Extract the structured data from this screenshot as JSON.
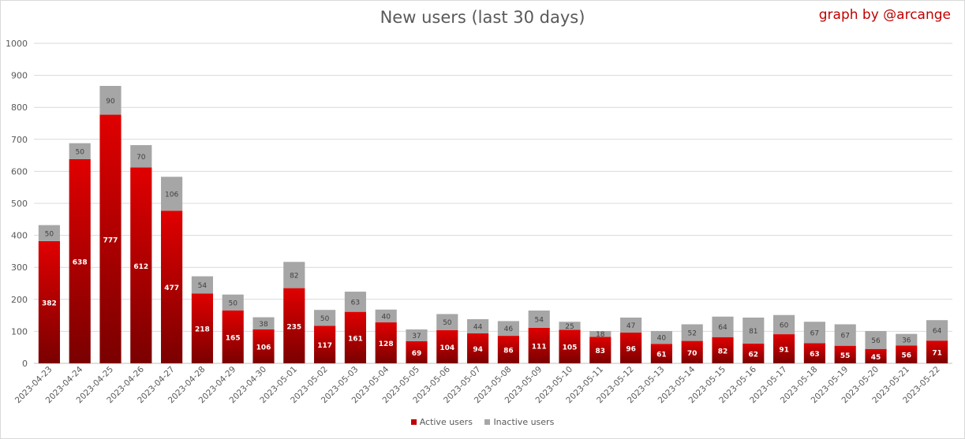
{
  "chart_data": {
    "type": "bar",
    "stacked": true,
    "title": "New users (last 30 days)",
    "credit": "graph by @arcange",
    "ylim": [
      0,
      1000
    ],
    "yticks": [
      0,
      100,
      200,
      300,
      400,
      500,
      600,
      700,
      800,
      900,
      1000
    ],
    "grid": true,
    "legend_position": "bottom",
    "categories": [
      "2023-04-23",
      "2023-04-24",
      "2023-04-25",
      "2023-04-26",
      "2023-04-27",
      "2023-04-28",
      "2023-04-29",
      "2023-04-30",
      "2023-05-01",
      "2023-05-02",
      "2023-05-03",
      "2023-05-04",
      "2023-05-05",
      "2023-05-06",
      "2023-05-07",
      "2023-05-08",
      "2023-05-09",
      "2023-05-10",
      "2023-05-11",
      "2023-05-12",
      "2023-05-13",
      "2023-05-14",
      "2023-05-15",
      "2023-05-16",
      "2023-05-17",
      "2023-05-18",
      "2023-05-19",
      "2023-05-20",
      "2023-05-21",
      "2023-05-22"
    ],
    "series": [
      {
        "name": "Active users",
        "color": "#c00000",
        "values": [
          382,
          638,
          777,
          612,
          477,
          218,
          165,
          106,
          235,
          117,
          161,
          128,
          69,
          104,
          94,
          86,
          111,
          105,
          83,
          96,
          61,
          70,
          82,
          62,
          91,
          63,
          55,
          45,
          56,
          71
        ]
      },
      {
        "name": "Inactive users",
        "color": "#a6a6a6",
        "values": [
          50,
          50,
          90,
          70,
          106,
          54,
          50,
          38,
          82,
          50,
          63,
          40,
          37,
          50,
          44,
          46,
          54,
          25,
          18,
          47,
          40,
          52,
          64,
          81,
          60,
          67,
          67,
          56,
          36,
          64
        ]
      }
    ]
  }
}
